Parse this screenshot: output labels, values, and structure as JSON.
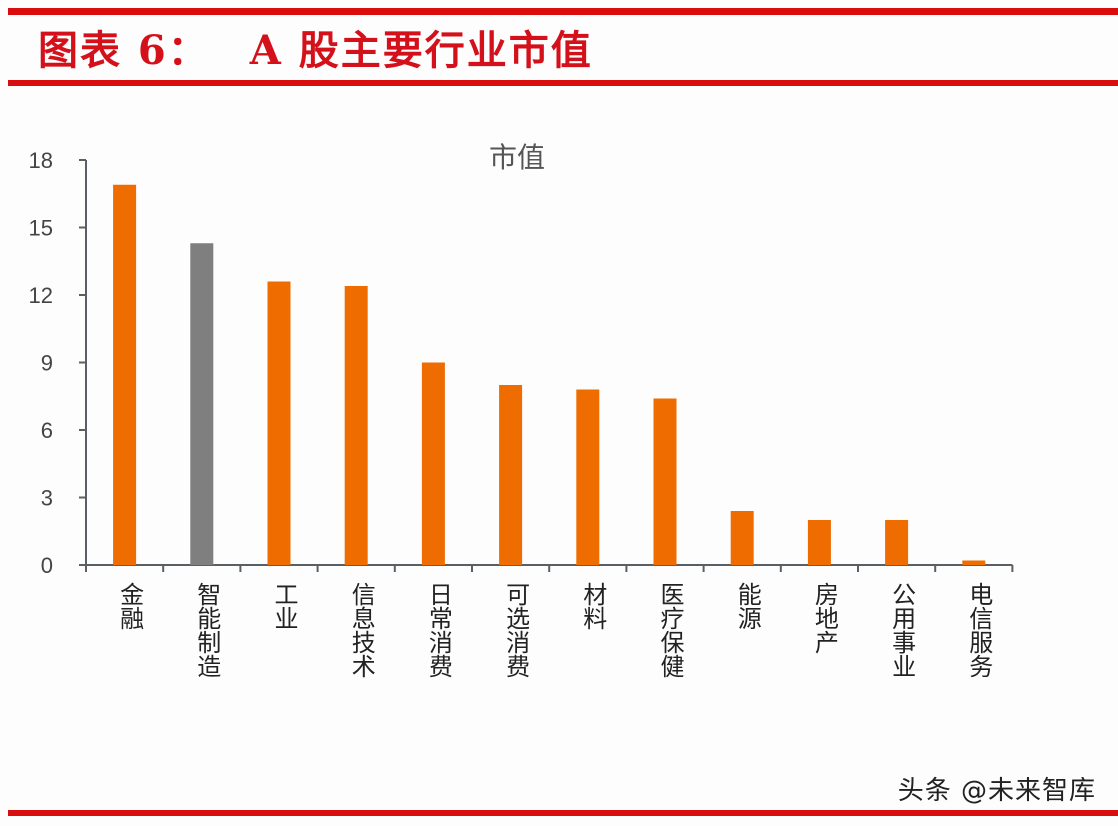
{
  "header": {
    "label": "图表 6：",
    "title": "A 股主要行业市值"
  },
  "colors": {
    "rule": "#d90d0d",
    "title": "#d4101a",
    "bar_default": "#ef6c00",
    "bar_highlight": "#7f7f7f",
    "axis": "#5a5f66"
  },
  "chart_data": {
    "type": "bar",
    "title": "市值",
    "xlabel": "",
    "ylabel": "",
    "ylim": [
      0,
      18
    ],
    "yticks": [
      0,
      3,
      6,
      9,
      12,
      15,
      18
    ],
    "grid": false,
    "legend": null,
    "categories": [
      "金融",
      "智能制造",
      "工业",
      "信息技术",
      "日常消费",
      "可选消费",
      "材料",
      "医疗保健",
      "能源",
      "房地产",
      "公用事业",
      "电信服务"
    ],
    "values": [
      16.9,
      14.3,
      12.6,
      12.4,
      9.0,
      8.0,
      7.8,
      7.4,
      2.4,
      2.0,
      2.0,
      0.2
    ],
    "highlight_index": 1
  },
  "footer": {
    "watermark": "头条 @未来智库"
  }
}
